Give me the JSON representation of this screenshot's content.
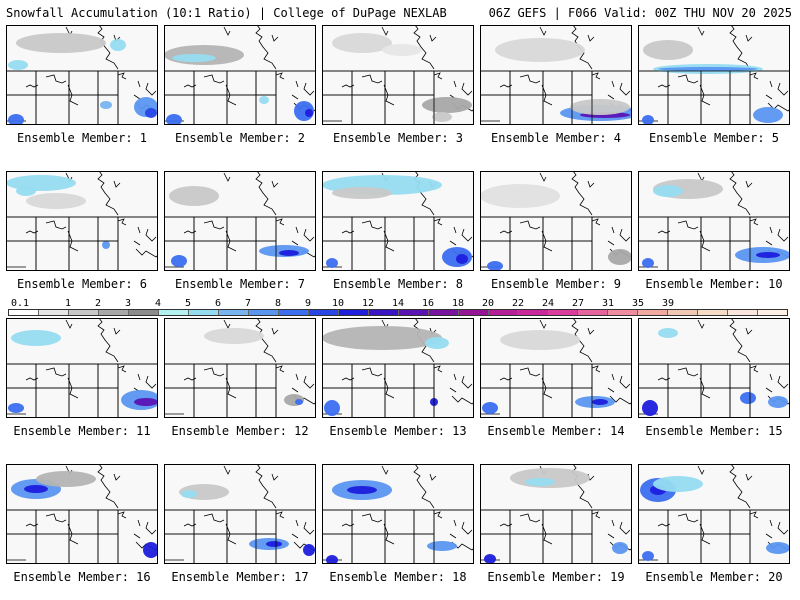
{
  "header": {
    "left_title": "Snowfall Accumulation (10:1 Ratio) | College of DuPage NEXLAB",
    "right_title": "06Z GEFS | F066 Valid: 00Z THU NOV 20 2025"
  },
  "colorbar": {
    "labels": [
      "0.1",
      "1",
      "2",
      "3",
      "4",
      "5",
      "6",
      "7",
      "8",
      "9",
      "10",
      "12",
      "14",
      "16",
      "18",
      "20",
      "22",
      "24",
      "27",
      "31",
      "35",
      "39"
    ],
    "colors": [
      "#ffffff",
      "#e6e6e6",
      "#c8c8c8",
      "#a8a8a8",
      "#8c8c8c",
      "#b4f0f0",
      "#96dcf0",
      "#78b4f0",
      "#5a96f0",
      "#3c6ef0",
      "#2846e6",
      "#1e1edc",
      "#3c14c8",
      "#5a14b4",
      "#7814a0",
      "#961496",
      "#b41e96",
      "#c8289a",
      "#dc3c9e",
      "#e6649e",
      "#f08ca0",
      "#f0aaa0",
      "#f0c8b4",
      "#f5dcc8",
      "#fae6dc",
      "#fff0e6"
    ]
  },
  "panels": [
    {
      "label": "Ensemble Member: 1"
    },
    {
      "label": "Ensemble Member: 2"
    },
    {
      "label": "Ensemble Member: 3"
    },
    {
      "label": "Ensemble Member: 4"
    },
    {
      "label": "Ensemble Member: 5"
    },
    {
      "label": "Ensemble Member: 6"
    },
    {
      "label": "Ensemble Member: 7"
    },
    {
      "label": "Ensemble Member: 8"
    },
    {
      "label": "Ensemble Member: 9"
    },
    {
      "label": "Ensemble Member: 10"
    },
    {
      "label": "Ensemble Member: 11"
    },
    {
      "label": "Ensemble Member: 12"
    },
    {
      "label": "Ensemble Member: 13"
    },
    {
      "label": "Ensemble Member: 14"
    },
    {
      "label": "Ensemble Member: 15"
    },
    {
      "label": "Ensemble Member: 16"
    },
    {
      "label": "Ensemble Member: 17"
    },
    {
      "label": "Ensemble Member: 18"
    },
    {
      "label": "Ensemble Member: 19"
    },
    {
      "label": "Ensemble Member: 20"
    }
  ]
}
